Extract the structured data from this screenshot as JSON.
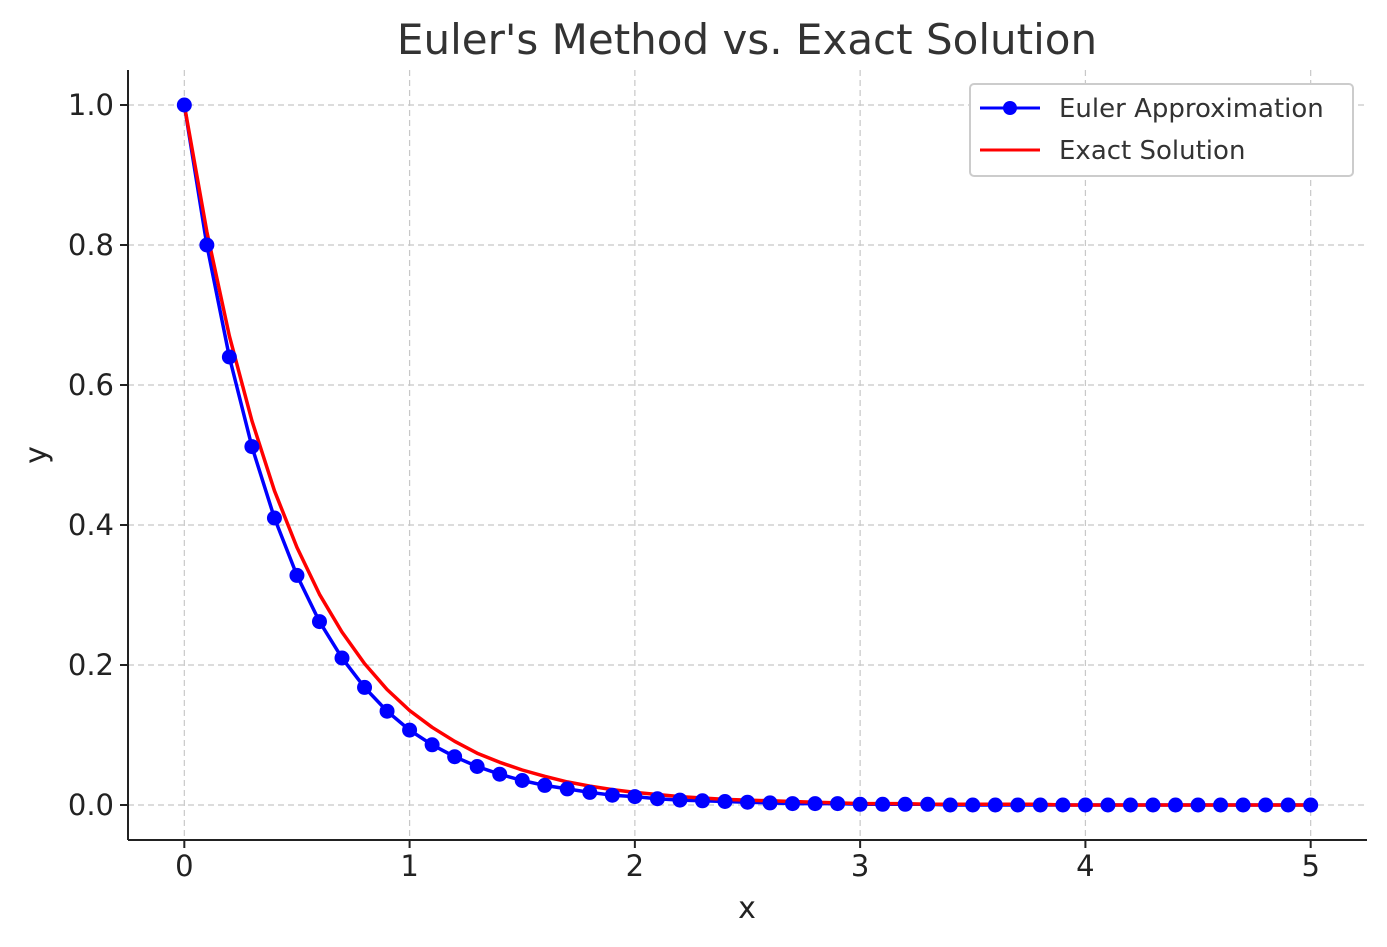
{
  "chart_data": {
    "type": "line",
    "title": "Euler's Method vs. Exact Solution",
    "xlabel": "x",
    "ylabel": "y",
    "xlim": [
      -0.25,
      5.25
    ],
    "ylim": [
      -0.05,
      1.05
    ],
    "xticks": [
      0,
      1,
      2,
      3,
      4,
      5
    ],
    "xtick_labels": [
      "0",
      "1",
      "2",
      "3",
      "4",
      "5"
    ],
    "yticks": [
      0.0,
      0.2,
      0.4,
      0.6,
      0.8,
      1.0
    ],
    "ytick_labels": [
      "0.0",
      "0.2",
      "0.4",
      "0.6",
      "0.8",
      "1.0"
    ],
    "grid": true,
    "legend_position": "top-right",
    "series": [
      {
        "name": "Euler Approximation",
        "color": "#0000ff",
        "marker": "circle",
        "x": [
          0,
          0.1,
          0.2,
          0.3,
          0.4,
          0.5,
          0.6,
          0.7,
          0.8,
          0.9,
          1.0,
          1.1,
          1.2,
          1.3,
          1.4,
          1.5,
          1.6,
          1.7,
          1.8,
          1.9,
          2.0,
          2.1,
          2.2,
          2.3,
          2.4,
          2.5,
          2.6,
          2.7,
          2.8,
          2.9,
          3.0,
          3.1,
          3.2,
          3.3,
          3.4,
          3.5,
          3.6,
          3.7,
          3.8,
          3.9,
          4.0,
          4.1,
          4.2,
          4.3,
          4.4,
          4.5,
          4.6,
          4.7,
          4.8,
          4.9,
          5.0
        ],
        "y": [
          1.0,
          0.8,
          0.64,
          0.512,
          0.41,
          0.328,
          0.262,
          0.21,
          0.168,
          0.134,
          0.107,
          0.086,
          0.069,
          0.055,
          0.044,
          0.035,
          0.028,
          0.023,
          0.018,
          0.014,
          0.012,
          0.009,
          0.007,
          0.006,
          0.005,
          0.004,
          0.003,
          0.002,
          0.002,
          0.002,
          0.001,
          0.001,
          0.001,
          0.001,
          0.0,
          0.0,
          0.0,
          0.0,
          0.0,
          0.0,
          0.0,
          0.0,
          0.0,
          0.0,
          0.0,
          0.0,
          0.0,
          0.0,
          0.0,
          0.0,
          0.0
        ]
      },
      {
        "name": "Exact Solution",
        "color": "#ff0000",
        "marker": "none",
        "x": [
          0,
          0.1,
          0.2,
          0.3,
          0.4,
          0.5,
          0.6,
          0.7,
          0.8,
          0.9,
          1.0,
          1.1,
          1.2,
          1.3,
          1.4,
          1.5,
          1.6,
          1.7,
          1.8,
          1.9,
          2.0,
          2.1,
          2.2,
          2.3,
          2.4,
          2.5,
          2.6,
          2.7,
          2.8,
          2.9,
          3.0,
          3.1,
          3.2,
          3.3,
          3.4,
          3.5,
          3.6,
          3.7,
          3.8,
          3.9,
          4.0,
          4.1,
          4.2,
          4.3,
          4.4,
          4.5,
          4.6,
          4.7,
          4.8,
          4.9,
          5.0
        ],
        "y": [
          1.0,
          0.819,
          0.67,
          0.549,
          0.449,
          0.368,
          0.301,
          0.247,
          0.202,
          0.165,
          0.135,
          0.111,
          0.091,
          0.074,
          0.061,
          0.05,
          0.041,
          0.033,
          0.027,
          0.022,
          0.018,
          0.015,
          0.012,
          0.01,
          0.008,
          0.007,
          0.006,
          0.005,
          0.004,
          0.003,
          0.002,
          0.002,
          0.002,
          0.001,
          0.001,
          0.001,
          0.001,
          0.001,
          0.001,
          0.0,
          0.0,
          0.0,
          0.0,
          0.0,
          0.0,
          0.0,
          0.0,
          0.0,
          0.0,
          0.0,
          0.0
        ]
      }
    ]
  }
}
